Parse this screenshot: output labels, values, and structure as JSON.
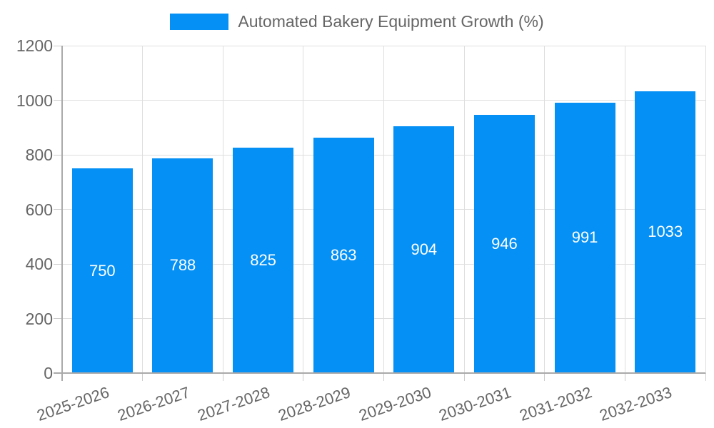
{
  "chart_data": {
    "type": "bar",
    "series_name": "Automated Bakery Equipment Growth (%)",
    "categories": [
      "2025-2026",
      "2026-2027",
      "2027-2028",
      "2028-2029",
      "2029-2030",
      "2030-2031",
      "2031-2032",
      "2032-2033"
    ],
    "values": [
      750,
      788,
      825,
      863,
      904,
      946,
      991,
      1033
    ],
    "title": "",
    "xlabel": "",
    "ylabel": "",
    "ylim": [
      0,
      1200
    ],
    "ytick_step": 200,
    "ytick_labels": [
      "0",
      "200",
      "400",
      "600",
      "800",
      "1000",
      "1200"
    ],
    "grid": true,
    "legend_position": "top-center",
    "value_labels_position": "inside-center",
    "x_label_rotation_deg": -19,
    "colors": {
      "bar": "#0590F5",
      "grid": "#dedede",
      "tick": "#cccccc",
      "axis": "#aaaaaa",
      "tick_text": "#666666",
      "legend_text": "#666666",
      "value_text": "#ffffff",
      "background": "#ffffff"
    }
  }
}
